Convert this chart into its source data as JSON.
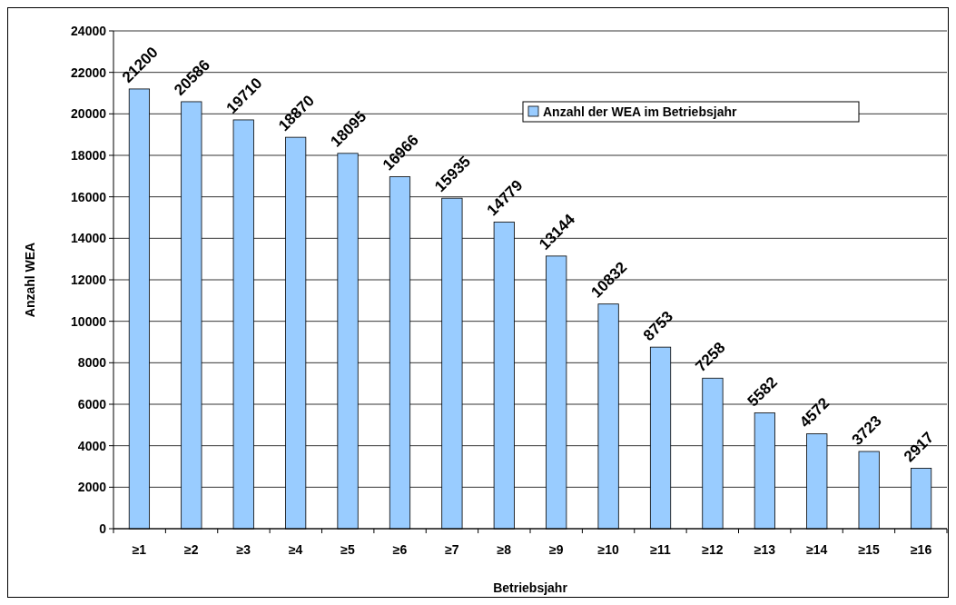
{
  "chart_data": {
    "type": "bar",
    "xlabel": "Betriebsjahr",
    "ylabel": "Anzahl WEA",
    "categories": [
      "≥1",
      "≥2",
      "≥3",
      "≥4",
      "≥5",
      "≥6",
      "≥7",
      "≥8",
      "≥9",
      "≥10",
      "≥11",
      "≥12",
      "≥13",
      "≥14",
      "≥15",
      "≥16"
    ],
    "series": [
      {
        "name": "Anzahl der WEA im Betriebsjahr",
        "color": "#99ccff",
        "values": [
          21200,
          20586,
          19710,
          18870,
          18095,
          16966,
          15935,
          14779,
          13144,
          10832,
          8753,
          7258,
          5582,
          4572,
          3723,
          2917
        ]
      }
    ],
    "ylim": [
      0,
      24000
    ],
    "yticks": [
      0,
      2000,
      4000,
      6000,
      8000,
      10000,
      12000,
      14000,
      16000,
      18000,
      20000,
      22000,
      24000
    ],
    "grid": "y",
    "legend": "top right",
    "data_labels": true
  }
}
